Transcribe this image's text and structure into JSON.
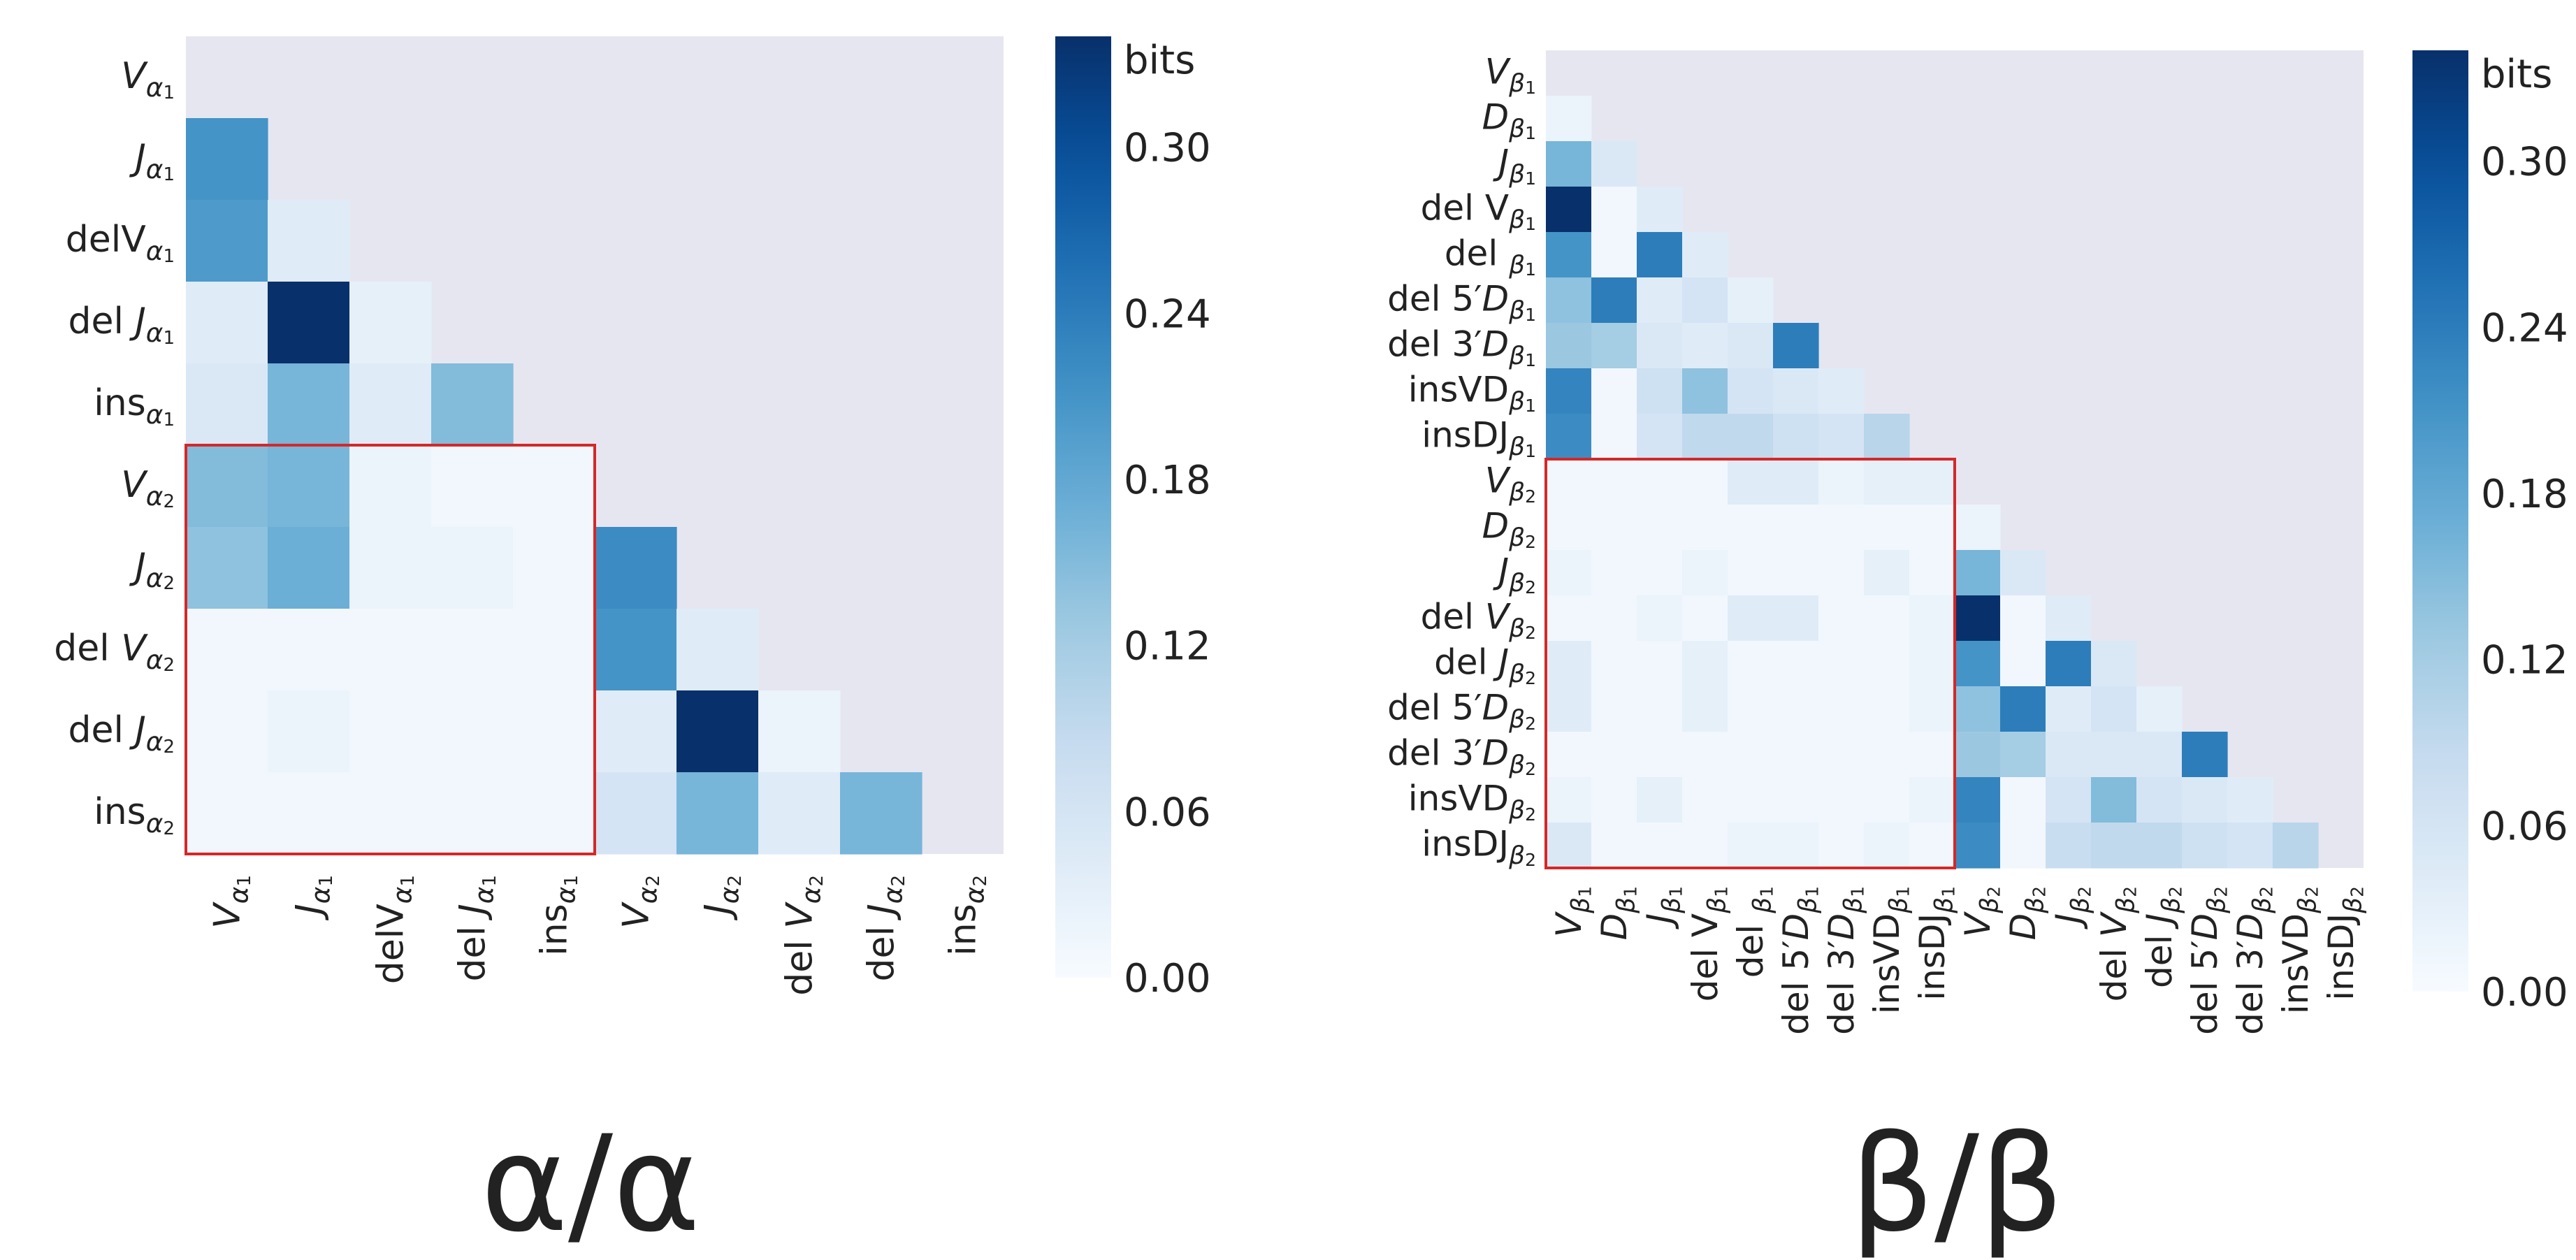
{
  "colors": {
    "background": "#ffffff",
    "mask": "#e6e6f0",
    "highlight": "#d62728",
    "label": "#222222"
  },
  "chart_data": [
    {
      "type": "heatmap",
      "id": "alpha",
      "title": "α/α",
      "colorbar": {
        "label": "bits",
        "vmin": 0,
        "vmax": 0.34,
        "ticks": [
          "0.00",
          "0.06",
          "0.12",
          "0.18",
          "0.24",
          "0.30"
        ],
        "tick_values": [
          0,
          0.06,
          0.12,
          0.18,
          0.24,
          0.3
        ]
      },
      "labels": [
        {
          "base": "V",
          "sub": "α",
          "num": "1",
          "italic": true
        },
        {
          "base": "J",
          "sub": "α",
          "num": "1",
          "italic": true
        },
        {
          "base": "delV",
          "sub": "α",
          "num": "1",
          "italic": false
        },
        {
          "base": "del ",
          "ital": "J",
          "sub": "α",
          "num": "1"
        },
        {
          "base": "ins",
          "sub": "α",
          "num": "1",
          "italic": false
        },
        {
          "base": "V",
          "sub": "α",
          "num": "2",
          "italic": true
        },
        {
          "base": "J",
          "sub": "α",
          "num": "2",
          "italic": true
        },
        {
          "base": "del ",
          "ital": "V",
          "sub": "α",
          "num": "2"
        },
        {
          "base": "del ",
          "ital": "J",
          "sub": "α",
          "num": "2"
        },
        {
          "base": "ins",
          "sub": "α",
          "num": "2",
          "italic": false
        }
      ],
      "values": [
        [],
        [
          0.21
        ],
        [
          0.2,
          0.04
        ],
        [
          0.04,
          0.34,
          0.03
        ],
        [
          0.05,
          0.16,
          0.04,
          0.15
        ],
        [
          0.15,
          0.16,
          0.02,
          0.01,
          0.01
        ],
        [
          0.14,
          0.17,
          0.02,
          0.02,
          0.01,
          0.22
        ],
        [
          0.01,
          0.01,
          0.01,
          0.01,
          0.01,
          0.21,
          0.04
        ],
        [
          0.01,
          0.02,
          0.01,
          0.01,
          0.01,
          0.04,
          0.34,
          0.02
        ],
        [
          0.01,
          0.01,
          0.01,
          0.01,
          0.01,
          0.06,
          0.16,
          0.04,
          0.16
        ]
      ],
      "highlight": {
        "rows": [
          5,
          9
        ],
        "cols": [
          0,
          4
        ]
      }
    },
    {
      "type": "heatmap",
      "id": "beta",
      "title": "β/β",
      "colorbar": {
        "label": "bits",
        "vmin": 0,
        "vmax": 0.34,
        "ticks": [
          "0.00",
          "0.06",
          "0.12",
          "0.18",
          "0.24",
          "0.30"
        ],
        "tick_values": [
          0,
          0.06,
          0.12,
          0.18,
          0.24,
          0.3
        ]
      },
      "labels": [
        {
          "base": "V",
          "sub": "β",
          "num": "1",
          "italic": true
        },
        {
          "base": "D",
          "sub": "β",
          "num": "1",
          "italic": true
        },
        {
          "base": "J",
          "sub": "β",
          "num": "1",
          "italic": true
        },
        {
          "base": "del V",
          "sub": "β",
          "num": "1",
          "italic": false
        },
        {
          "base": "del ",
          "sub": "β",
          "num": "1",
          "italic": false
        },
        {
          "base": "del 5′",
          "ital": "D",
          "sub": "β",
          "num": "1"
        },
        {
          "base": "del 3′",
          "ital": "D",
          "sub": "β",
          "num": "1"
        },
        {
          "base": "insVD",
          "sub": "β",
          "num": "1",
          "italic": false
        },
        {
          "base": "insDJ",
          "sub": "β",
          "num": "1",
          "italic": false
        },
        {
          "base": "V",
          "sub": "β",
          "num": "2",
          "italic": true
        },
        {
          "base": "D",
          "sub": "β",
          "num": "2",
          "italic": true
        },
        {
          "base": "J",
          "sub": "β",
          "num": "2",
          "italic": true
        },
        {
          "base": "del ",
          "ital": "V",
          "sub": "β",
          "num": "2"
        },
        {
          "base": "del ",
          "ital": "J",
          "sub": "β",
          "num": "2"
        },
        {
          "base": "del 5′",
          "ital": "D",
          "sub": "β",
          "num": "2"
        },
        {
          "base": "del 3′",
          "ital": "D",
          "sub": "β",
          "num": "2"
        },
        {
          "base": "insVD",
          "sub": "β",
          "num": "2",
          "italic": false
        },
        {
          "base": "insDJ",
          "sub": "β",
          "num": "2",
          "italic": false
        }
      ],
      "values": [
        [],
        [
          0.02
        ],
        [
          0.16,
          0.05
        ],
        [
          0.34,
          0.01,
          0.04
        ],
        [
          0.21,
          0.01,
          0.24,
          0.04
        ],
        [
          0.14,
          0.24,
          0.04,
          0.06,
          0.03
        ],
        [
          0.13,
          0.12,
          0.05,
          0.04,
          0.05,
          0.24
        ],
        [
          0.23,
          0.01,
          0.07,
          0.14,
          0.06,
          0.05,
          0.04
        ],
        [
          0.22,
          0.01,
          0.06,
          0.09,
          0.09,
          0.07,
          0.06,
          0.1
        ],
        [
          0.01,
          0.01,
          0.01,
          0.01,
          0.04,
          0.04,
          0.02,
          0.03,
          0.03
        ],
        [
          0.01,
          0.01,
          0.01,
          0.01,
          0.01,
          0.01,
          0.01,
          0.01,
          0.01,
          0.02
        ],
        [
          0.02,
          0.01,
          0.01,
          0.02,
          0.01,
          0.01,
          0.01,
          0.03,
          0.01,
          0.16,
          0.05
        ],
        [
          0.01,
          0.01,
          0.02,
          0.01,
          0.04,
          0.04,
          0.01,
          0.01,
          0.02,
          0.34,
          0.01,
          0.04
        ],
        [
          0.04,
          0.01,
          0.01,
          0.03,
          0.01,
          0.01,
          0.01,
          0.01,
          0.02,
          0.21,
          0.01,
          0.24,
          0.05
        ],
        [
          0.04,
          0.01,
          0.01,
          0.03,
          0.01,
          0.01,
          0.01,
          0.01,
          0.02,
          0.14,
          0.24,
          0.04,
          0.06,
          0.03
        ],
        [
          0.01,
          0.01,
          0.01,
          0.01,
          0.01,
          0.01,
          0.01,
          0.01,
          0.01,
          0.13,
          0.12,
          0.05,
          0.05,
          0.05,
          0.24
        ],
        [
          0.02,
          0.01,
          0.03,
          0.01,
          0.01,
          0.01,
          0.01,
          0.01,
          0.02,
          0.23,
          0.01,
          0.06,
          0.15,
          0.06,
          0.05,
          0.04
        ],
        [
          0.05,
          0.01,
          0.01,
          0.01,
          0.02,
          0.02,
          0.01,
          0.02,
          0.01,
          0.22,
          0.01,
          0.08,
          0.09,
          0.09,
          0.07,
          0.06,
          0.1
        ]
      ],
      "highlight": {
        "rows": [
          9,
          17
        ],
        "cols": [
          0,
          8
        ]
      }
    }
  ]
}
